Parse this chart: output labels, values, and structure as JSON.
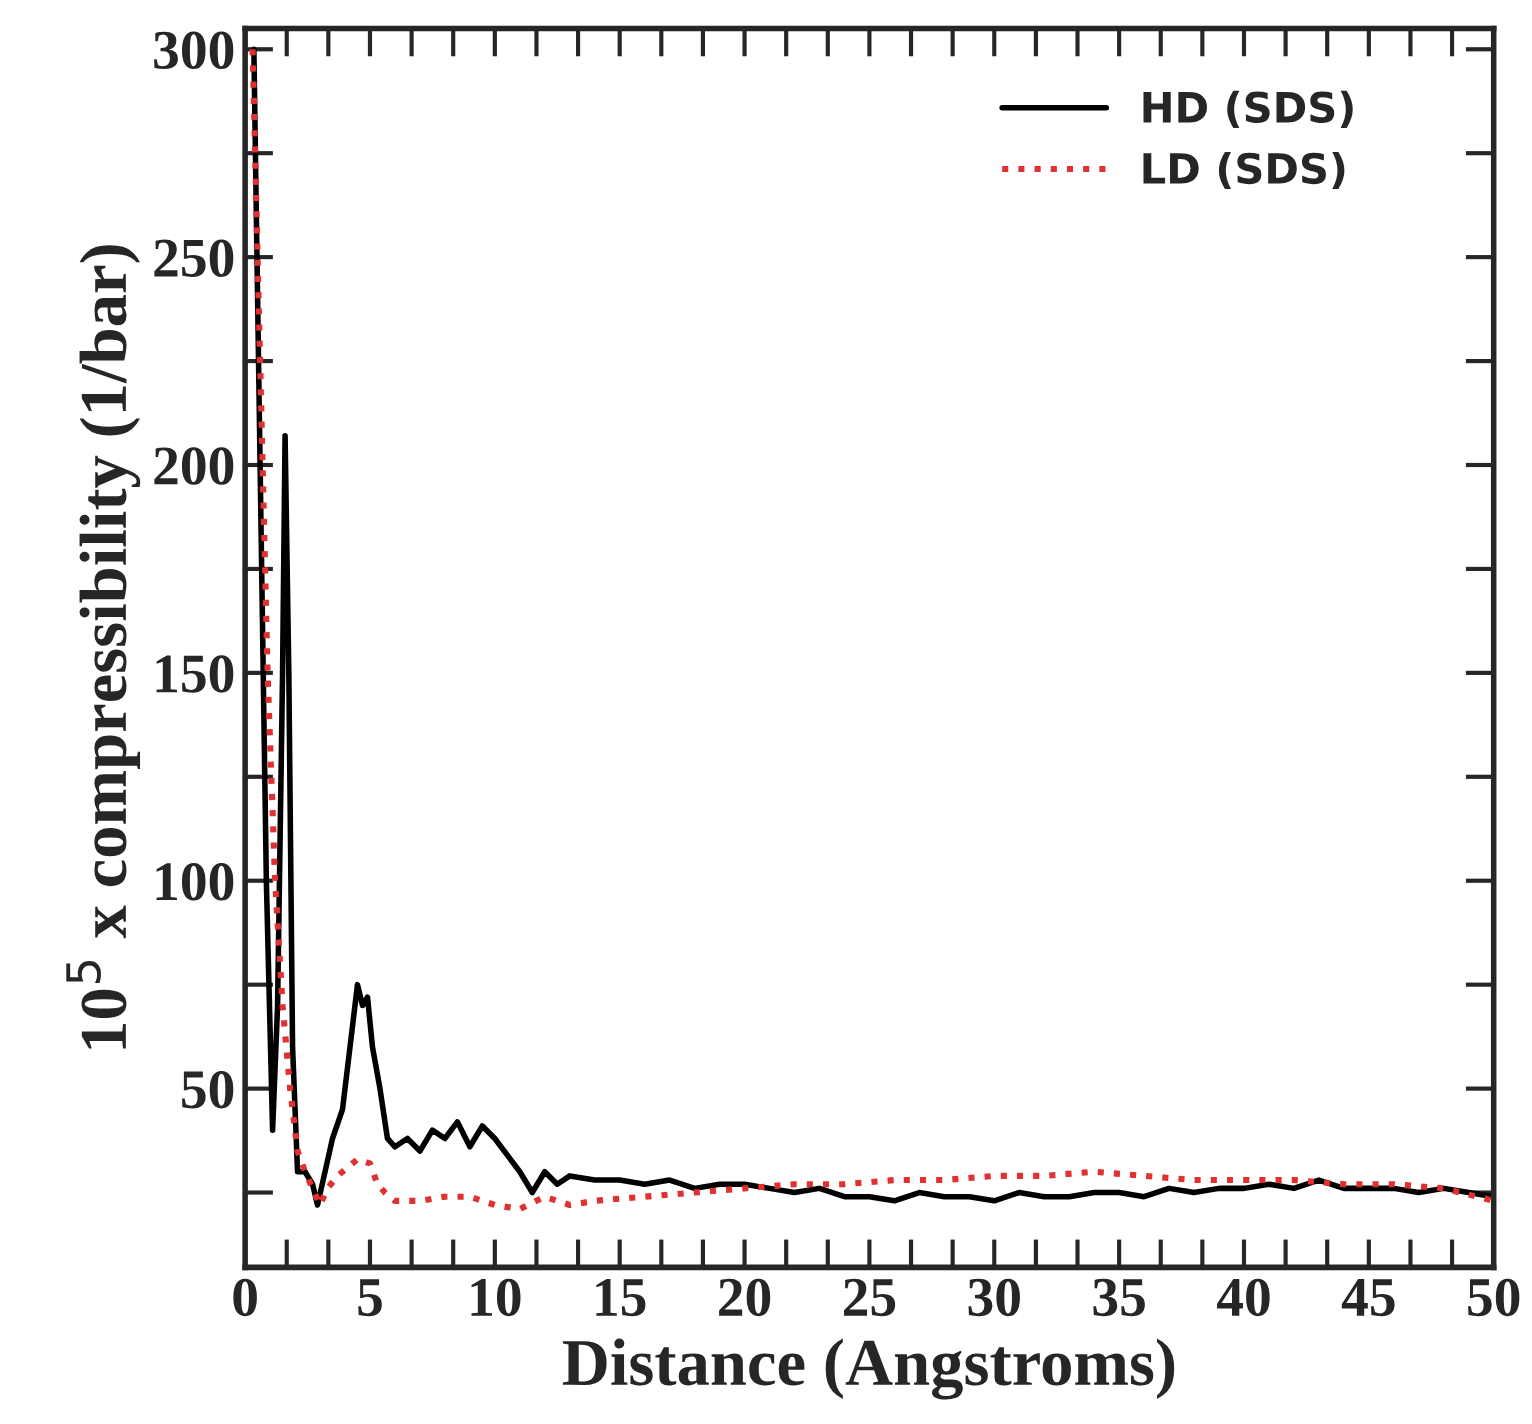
{
  "chart_data": {
    "type": "line",
    "xlabel": "Distance (Angstroms)",
    "ylabel": "10$^{5}$ x compressibility (1/bar)",
    "xlim": [
      0,
      50
    ],
    "ylim": [
      7,
      305
    ],
    "xticks": [
      0,
      {
        "value": 1.667,
        "label": null
      },
      {
        "value": 3.333,
        "label": null
      },
      5,
      {
        "value": 6.667,
        "label": null
      },
      {
        "value": 8.333,
        "label": null
      },
      10,
      {
        "value": 11.667,
        "label": null
      },
      {
        "value": 13.333,
        "label": null
      },
      15,
      {
        "value": 16.667,
        "label": null
      },
      {
        "value": 18.333,
        "label": null
      },
      20,
      {
        "value": 21.667,
        "label": null
      },
      {
        "value": 23.333,
        "label": null
      },
      25,
      {
        "value": 26.667,
        "label": null
      },
      {
        "value": 28.333,
        "label": null
      },
      30,
      {
        "value": 31.667,
        "label": null
      },
      {
        "value": 33.333,
        "label": null
      },
      35,
      {
        "value": 36.667,
        "label": null
      },
      {
        "value": 38.333,
        "label": null
      },
      40,
      {
        "value": 41.667,
        "label": null
      },
      {
        "value": 43.333,
        "label": null
      },
      45,
      {
        "value": 46.667,
        "label": null
      },
      {
        "value": 48.333,
        "label": null
      },
      50
    ],
    "yticks": [
      {
        "value": 25,
        "label": null
      },
      50,
      {
        "value": 75,
        "label": null
      },
      100,
      {
        "value": 125,
        "label": null
      },
      150,
      {
        "value": 175,
        "label": null
      },
      200,
      {
        "value": 225,
        "label": null
      },
      250,
      {
        "value": 275,
        "label": null
      },
      300
    ],
    "legend": "top right",
    "grid": false,
    "series": [
      {
        "name": "HD (SDS)",
        "color": "#000000",
        "line_style": "solid",
        "x": [
          0.35,
          0.6,
          0.85,
          1.1,
          1.3,
          1.5,
          1.6,
          1.75,
          1.9,
          2.1,
          2.4,
          2.7,
          2.9,
          3.2,
          3.5,
          3.9,
          4.2,
          4.5,
          4.7,
          4.9,
          5.1,
          5.4,
          5.7,
          6.0,
          6.5,
          7.0,
          7.5,
          8.0,
          8.5,
          9.0,
          9.5,
          10.0,
          10.5,
          11.0,
          11.5,
          12.0,
          12.5,
          13.0,
          14.0,
          15.0,
          16.0,
          17.0,
          18.0,
          19.0,
          20.0,
          21.0,
          22.0,
          23.0,
          24.0,
          25.0,
          26.0,
          27.0,
          28.0,
          29.0,
          30.0,
          31.0,
          32.0,
          33.0,
          34.0,
          35.0,
          36.0,
          37.0,
          38.0,
          39.0,
          40.0,
          41.0,
          42.0,
          43.0,
          44.0,
          45.0,
          46.0,
          47.0,
          48.0,
          49.0,
          50.0
        ],
        "values": [
          300,
          200,
          100,
          40,
          70,
          150,
          207,
          150,
          60,
          30,
          30,
          27,
          22,
          30,
          38,
          45,
          60,
          75,
          70,
          72,
          60,
          50,
          38,
          36,
          38,
          35,
          40,
          38,
          42,
          36,
          41,
          38,
          34,
          30,
          25,
          30,
          27,
          29,
          28,
          28,
          27,
          28,
          26,
          27,
          27,
          26,
          25,
          26,
          24,
          24,
          23,
          25,
          24,
          24,
          23,
          25,
          24,
          24,
          25,
          25,
          24,
          26,
          25,
          26,
          26,
          27,
          26,
          28,
          26,
          26,
          26,
          25,
          26,
          25,
          24
        ]
      },
      {
        "name": "LD (SDS)",
        "color": "#e03030",
        "line_style": "dotted",
        "x": [
          0.3,
          0.5,
          0.7,
          0.9,
          1.2,
          1.5,
          1.8,
          2.1,
          2.4,
          2.7,
          3.0,
          3.3,
          3.7,
          4.1,
          4.5,
          5.0,
          5.3,
          5.6,
          6.0,
          7.0,
          8.0,
          9.0,
          10.0,
          11.0,
          12.0,
          13.0,
          14.0,
          16.0,
          18.0,
          20.0,
          22.0,
          24.0,
          26.0,
          28.0,
          30.0,
          32.0,
          34.0,
          36.0,
          38.0,
          40.0,
          42.0,
          44.0,
          46.0,
          48.0,
          50.0
        ],
        "values": [
          300,
          250,
          200,
          150,
          100,
          70,
          50,
          35,
          30,
          26,
          22,
          26,
          29,
          31,
          33,
          32,
          27,
          25,
          23,
          23,
          24,
          24,
          22,
          21,
          24,
          22,
          23,
          24,
          25,
          26,
          27,
          27,
          28,
          28,
          29,
          29,
          30,
          29,
          28,
          28,
          28,
          27,
          27,
          26,
          23
        ]
      }
    ]
  }
}
